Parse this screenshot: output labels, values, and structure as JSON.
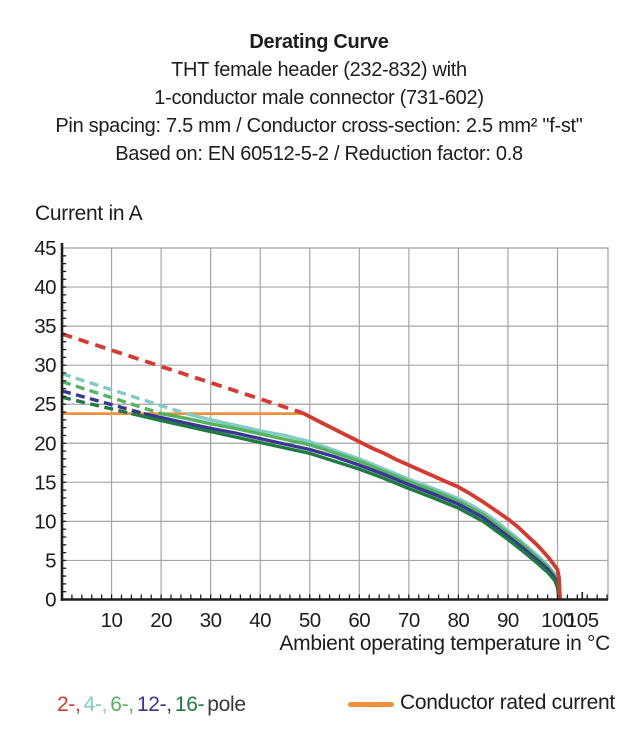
{
  "header": {
    "title": "Derating Curve",
    "line2": "THT female header (232-832) with",
    "line3": "1-conductor male connector (731-602)",
    "line4": "Pin spacing: 7.5 mm / Conductor cross-section: 2.5 mm² \"f-st\"",
    "line5": "Based on: EN 60512-5-2 / Reduction factor: 0.8"
  },
  "chart_data": {
    "type": "line",
    "title": "Derating Curve",
    "xlabel": "Ambient operating temperature in °C",
    "ylabel": "Current in A",
    "xlim": [
      0,
      110
    ],
    "ylim": [
      0,
      45
    ],
    "xticks": [
      10,
      20,
      30,
      40,
      50,
      60,
      70,
      80,
      90,
      100,
      105
    ],
    "yticks": [
      0,
      5,
      10,
      15,
      20,
      25,
      30,
      35,
      40,
      45
    ],
    "grid": true,
    "grid_color": "#a5a5a5",
    "axis_color": "#1d1d1b",
    "rated_current_line": {
      "label": "Conductor rated current",
      "value_a": 23.8,
      "x_start": 0,
      "x_end": 48.5,
      "color": "#f0923b"
    },
    "series": [
      {
        "name": "4-pole",
        "color": "#82cbc4",
        "dash": "9 5.5",
        "dashed_points": [
          [
            0,
            28.9
          ],
          [
            25,
            23.8
          ]
        ],
        "solid_points": [
          [
            25,
            23.8
          ],
          [
            30,
            23.0
          ],
          [
            35,
            22.3
          ],
          [
            40,
            21.6
          ],
          [
            45,
            21.0
          ],
          [
            50,
            20.2
          ],
          [
            55,
            19.1
          ],
          [
            60,
            18.0
          ],
          [
            65,
            16.7
          ],
          [
            70,
            15.4
          ],
          [
            75,
            14.2
          ],
          [
            80,
            12.9
          ],
          [
            82.5,
            12.1
          ],
          [
            85,
            11.2
          ],
          [
            87.5,
            10.1
          ],
          [
            90,
            8.8
          ],
          [
            92,
            7.8
          ],
          [
            94,
            6.7
          ],
          [
            96,
            5.6
          ],
          [
            98,
            4.4
          ],
          [
            99.5,
            3.2
          ],
          [
            100.3,
            2.2
          ],
          [
            100.6,
            0
          ]
        ]
      },
      {
        "name": "6-pole",
        "color": "#55b25f",
        "dash": "9 5.5",
        "dashed_points": [
          [
            0,
            27.9
          ],
          [
            20,
            23.8
          ]
        ],
        "solid_points": [
          [
            20,
            23.8
          ],
          [
            25,
            23.2
          ],
          [
            30,
            22.5
          ],
          [
            35,
            21.9
          ],
          [
            40,
            21.2
          ],
          [
            45,
            20.5
          ],
          [
            50,
            19.8
          ],
          [
            55,
            18.8
          ],
          [
            60,
            17.7
          ],
          [
            65,
            16.4
          ],
          [
            70,
            15.1
          ],
          [
            75,
            13.9
          ],
          [
            80,
            12.6
          ],
          [
            85,
            10.9
          ],
          [
            90,
            8.5
          ],
          [
            93,
            7.0
          ],
          [
            96,
            5.3
          ],
          [
            98,
            4.2
          ],
          [
            99.5,
            3.0
          ],
          [
            100.2,
            2.0
          ],
          [
            100.5,
            0
          ]
        ]
      },
      {
        "name": "12-pole",
        "color": "#3a3694",
        "dash": "9 5.5",
        "dashed_points": [
          [
            0,
            26.7
          ],
          [
            16.5,
            23.8
          ]
        ],
        "solid_points": [
          [
            16.5,
            23.8
          ],
          [
            20,
            23.3
          ],
          [
            25,
            22.6
          ],
          [
            30,
            21.9
          ],
          [
            35,
            21.3
          ],
          [
            40,
            20.6
          ],
          [
            45,
            19.9
          ],
          [
            50,
            19.2
          ],
          [
            55,
            18.3
          ],
          [
            60,
            17.2
          ],
          [
            65,
            16.0
          ],
          [
            70,
            14.7
          ],
          [
            75,
            13.5
          ],
          [
            80,
            12.2
          ],
          [
            85,
            10.5
          ],
          [
            90,
            8.1
          ],
          [
            93,
            6.6
          ],
          [
            96,
            5.0
          ],
          [
            98,
            3.9
          ],
          [
            99.5,
            2.7
          ],
          [
            100.1,
            1.8
          ],
          [
            100.4,
            0
          ]
        ]
      },
      {
        "name": "16-pole",
        "color": "#1f7b40",
        "dash": "9 5.5",
        "dashed_points": [
          [
            0,
            25.9
          ],
          [
            14,
            23.8
          ]
        ],
        "solid_points": [
          [
            14,
            23.8
          ],
          [
            20,
            22.9
          ],
          [
            25,
            22.2
          ],
          [
            30,
            21.5
          ],
          [
            35,
            20.8
          ],
          [
            40,
            20.1
          ],
          [
            45,
            19.4
          ],
          [
            50,
            18.7
          ],
          [
            55,
            17.7
          ],
          [
            60,
            16.7
          ],
          [
            65,
            15.5
          ],
          [
            70,
            14.2
          ],
          [
            75,
            13.0
          ],
          [
            80,
            11.7
          ],
          [
            85,
            10.0
          ],
          [
            90,
            7.7
          ],
          [
            93,
            6.2
          ],
          [
            96,
            4.6
          ],
          [
            98,
            3.5
          ],
          [
            99.5,
            2.4
          ],
          [
            100,
            1.5
          ],
          [
            100.3,
            0
          ]
        ]
      },
      {
        "name": "2-pole",
        "color": "#d6392f",
        "dash": "10.5 7",
        "dashed_points": [
          [
            0,
            34
          ],
          [
            48.5,
            23.9
          ]
        ],
        "solid_points": [
          [
            48.5,
            23.9
          ],
          [
            50,
            23.4
          ],
          [
            52.5,
            22.6
          ],
          [
            55,
            21.8
          ],
          [
            57.5,
            21.0
          ],
          [
            60,
            20.2
          ],
          [
            62.5,
            19.4
          ],
          [
            65,
            18.7
          ],
          [
            67.5,
            17.9
          ],
          [
            70,
            17.2
          ],
          [
            72.5,
            16.5
          ],
          [
            75,
            15.8
          ],
          [
            77.5,
            15.1
          ],
          [
            80,
            14.4
          ],
          [
            82.5,
            13.5
          ],
          [
            85,
            12.5
          ],
          [
            87.5,
            11.4
          ],
          [
            90,
            10.3
          ],
          [
            92,
            9.3
          ],
          [
            94,
            8.1
          ],
          [
            96,
            6.9
          ],
          [
            98,
            5.5
          ],
          [
            99,
            4.7
          ],
          [
            100,
            3.8
          ],
          [
            100.3,
            2.8
          ],
          [
            100.5,
            0
          ]
        ]
      }
    ]
  },
  "legend": {
    "pole_items": [
      {
        "label": "2-,",
        "color": "#d6392f"
      },
      {
        "label": "4-,",
        "color": "#82cbc4"
      },
      {
        "label": "6-,",
        "color": "#55b25f"
      },
      {
        "label": "12-,",
        "color": "#3a3694"
      },
      {
        "label": "16-",
        "color": "#1f7b40"
      }
    ],
    "pole_suffix": "pole",
    "pole_suffix_color": "#3a3a3a",
    "rated_label": "Conductor rated current",
    "rated_color": "#f0923b"
  }
}
